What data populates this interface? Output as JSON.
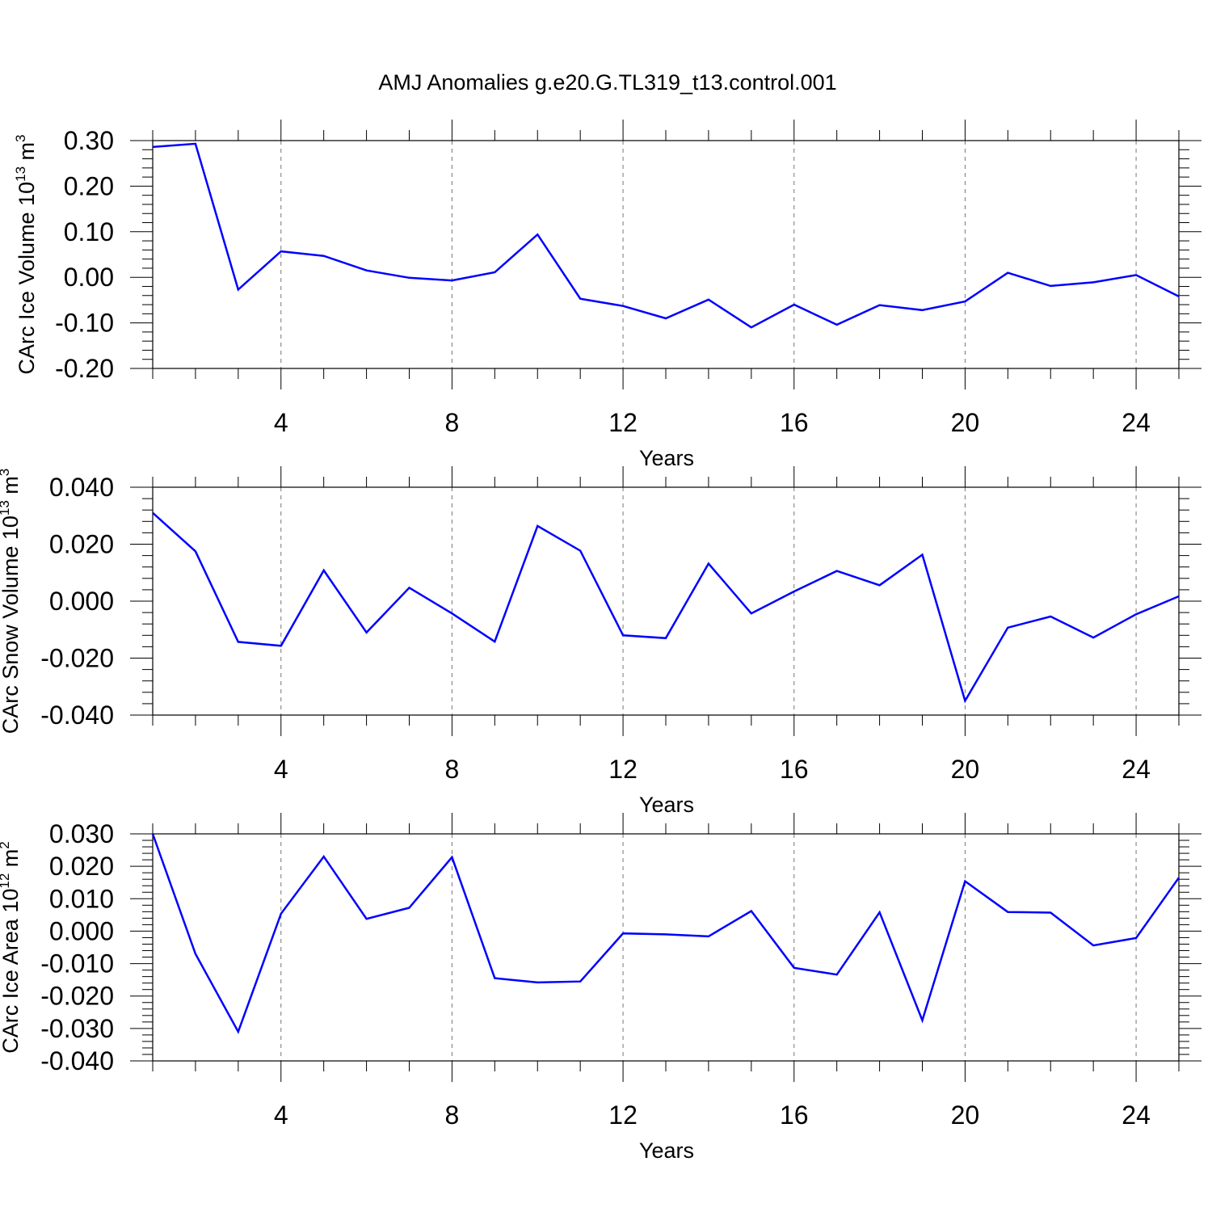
{
  "chart_data": [
    {
      "type": "line",
      "title": "AMJ Anomalies g.e20.G.TL319_t13.control.001",
      "xlabel": "Years",
      "ylabel": {
        "text": "CArc Ice Volume 10",
        "exponent": "13",
        "unit": "m",
        "unit_exponent": "3"
      },
      "xlim": [
        1,
        25
      ],
      "ylim": [
        -0.2,
        0.3
      ],
      "x_ticks": [
        "4",
        "8",
        "12",
        "16",
        "20",
        "24"
      ],
      "y_ticks": [
        "0.30",
        "0.20",
        "0.10",
        "0.00",
        "-0.10",
        "-0.20"
      ],
      "grid": "vertical dashed at major x ticks",
      "line_color": "#0000ff",
      "series": [
        {
          "x": [
            1,
            2,
            3,
            4,
            5,
            6,
            7,
            8,
            9,
            10,
            11,
            12,
            13,
            14,
            15,
            16,
            17,
            18,
            19,
            20,
            21,
            22,
            23,
            24,
            25
          ],
          "values": [
            0.286,
            0.293,
            -0.027,
            0.057,
            0.047,
            0.015,
            -0.001,
            -0.007,
            0.011,
            0.094,
            -0.047,
            -0.063,
            -0.09,
            -0.049,
            -0.11,
            -0.06,
            -0.104,
            -0.061,
            -0.072,
            -0.053,
            0.01,
            -0.019,
            -0.011,
            0.005,
            -0.042
          ]
        }
      ]
    },
    {
      "type": "line",
      "title": "",
      "xlabel": "Years",
      "ylabel": {
        "text": "CArc Snow Volume 10",
        "exponent": "13",
        "unit": "m",
        "unit_exponent": "3"
      },
      "xlim": [
        1,
        25
      ],
      "ylim": [
        -0.04,
        0.04
      ],
      "x_ticks": [
        "4",
        "8",
        "12",
        "16",
        "20",
        "24"
      ],
      "y_ticks": [
        "0.040",
        "0.020",
        "0.000",
        "-0.020",
        "-0.040"
      ],
      "grid": "vertical dashed at major x ticks",
      "line_color": "#0000ff",
      "series": [
        {
          "x": [
            1,
            2,
            3,
            4,
            5,
            6,
            7,
            8,
            9,
            10,
            11,
            12,
            13,
            14,
            15,
            16,
            17,
            18,
            19,
            20,
            21,
            22,
            23,
            24,
            25
          ],
          "values": [
            0.031,
            0.0175,
            -0.0143,
            -0.0157,
            0.0108,
            -0.011,
            0.0047,
            -0.0043,
            -0.0142,
            0.0264,
            0.0177,
            -0.012,
            -0.013,
            0.0132,
            -0.0043,
            0.0034,
            0.0106,
            0.0056,
            0.0163,
            -0.035,
            -0.0093,
            -0.0054,
            -0.0128,
            -0.0046,
            0.0017
          ]
        }
      ]
    },
    {
      "type": "line",
      "title": "",
      "xlabel": "Years",
      "ylabel": {
        "text": "CArc Ice Area 10",
        "exponent": "12",
        "unit": "m",
        "unit_exponent": "2"
      },
      "xlim": [
        1,
        25
      ],
      "ylim": [
        -0.04,
        0.03
      ],
      "x_ticks": [
        "4",
        "8",
        "12",
        "16",
        "20",
        "24"
      ],
      "y_ticks": [
        "0.030",
        "0.020",
        "0.010",
        "0.000",
        "-0.010",
        "-0.020",
        "-0.030",
        "-0.040"
      ],
      "grid": "vertical dashed at major x ticks",
      "line_color": "#0000ff",
      "series": [
        {
          "x": [
            1,
            2,
            3,
            4,
            5,
            6,
            7,
            8,
            9,
            10,
            11,
            12,
            13,
            14,
            15,
            16,
            17,
            18,
            19,
            20,
            21,
            22,
            23,
            24,
            25
          ],
          "values": [
            0.03,
            -0.007,
            -0.031,
            0.0054,
            0.023,
            0.0038,
            0.0072,
            0.0228,
            -0.0145,
            -0.0158,
            -0.0155,
            -0.0007,
            -0.001,
            -0.0016,
            0.0062,
            -0.0113,
            -0.0134,
            0.0058,
            -0.0275,
            0.0154,
            0.0059,
            0.0057,
            -0.0044,
            -0.0021,
            0.0165
          ]
        }
      ]
    }
  ]
}
